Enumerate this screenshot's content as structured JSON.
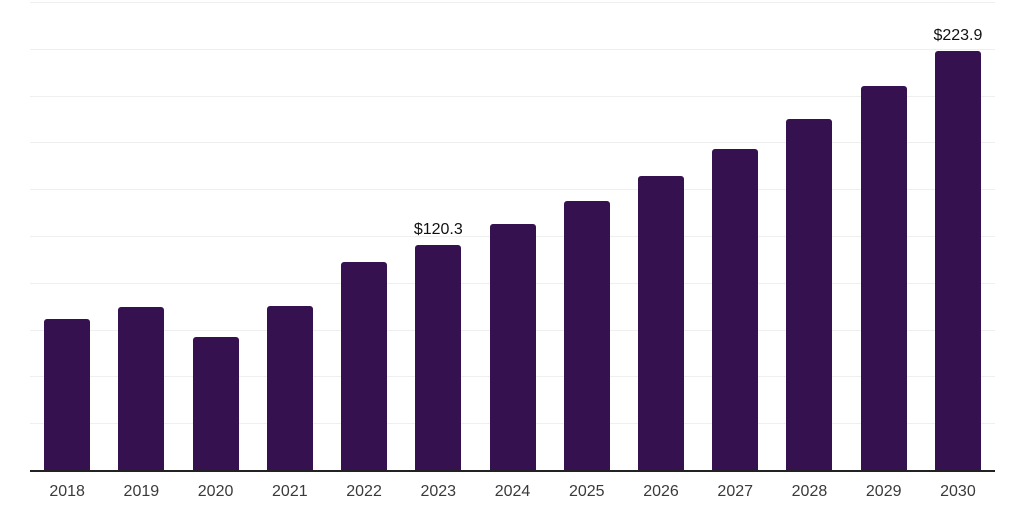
{
  "chart_data": {
    "type": "bar",
    "title": "",
    "xlabel": "",
    "ylabel": "",
    "categories": [
      "2018",
      "2019",
      "2020",
      "2021",
      "2022",
      "2023",
      "2024",
      "2025",
      "2026",
      "2027",
      "2028",
      "2029",
      "2030"
    ],
    "values": [
      80.5,
      87.0,
      71.3,
      87.5,
      111.0,
      120.3,
      131.5,
      143.7,
      157.0,
      171.6,
      187.5,
      204.9,
      223.9
    ],
    "data_labels": [
      {
        "category": "2023",
        "text": "$120.3"
      },
      {
        "category": "2030",
        "text": "$223.9"
      }
    ],
    "ylim": [
      0,
      250
    ],
    "gridline_step": 25,
    "grid": true,
    "y_axis_labels_visible": false,
    "legend": "none",
    "colors": {
      "bar": "#36114F",
      "gridline": "#efefef",
      "axis": "#222222",
      "tick_label": "#3a3a3a",
      "data_label": "#111111",
      "background": "#ffffff"
    }
  }
}
